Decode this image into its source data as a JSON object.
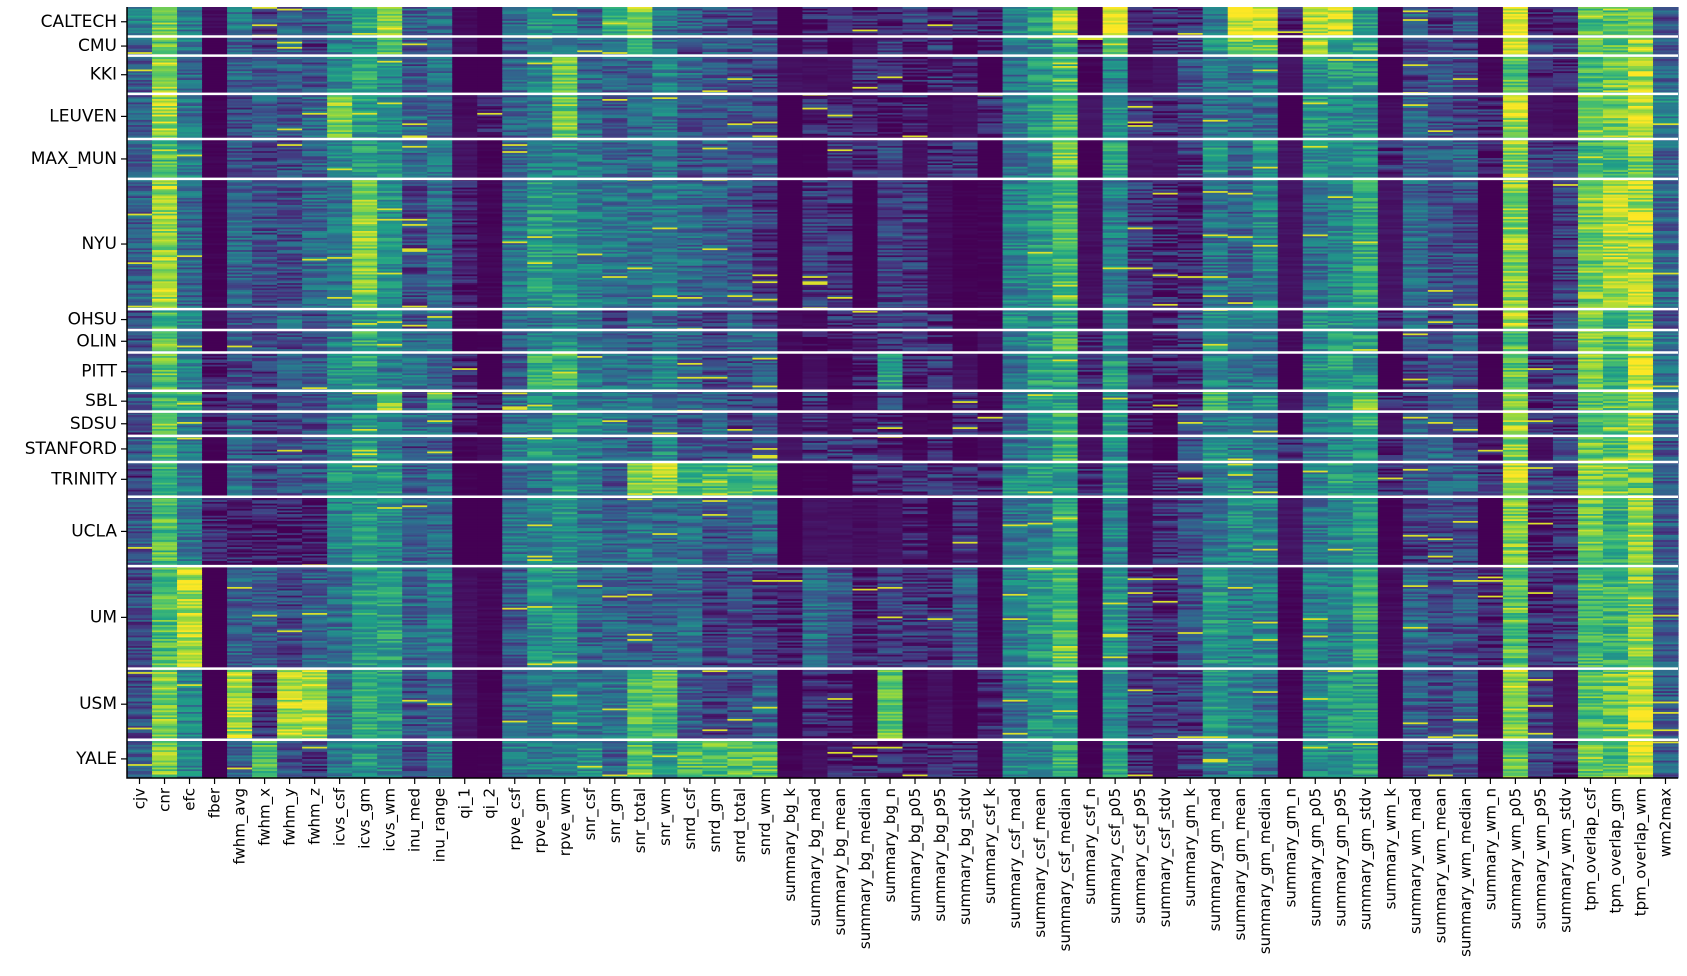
{
  "chart_data": {
    "type": "heatmap",
    "title": "",
    "xlabel": "",
    "ylabel": "",
    "grid": false,
    "legend": "none",
    "colormap": "viridis",
    "colors": {
      "viridis_stops": [
        "#440154",
        "#46327e",
        "#365c8d",
        "#277f8e",
        "#1fa187",
        "#4ac16d",
        "#a0da39",
        "#fde725"
      ],
      "separator": "#ffffff",
      "axis": "#000000"
    },
    "columns": [
      "cjv",
      "cnr",
      "efc",
      "fber",
      "fwhm_avg",
      "fwhm_x",
      "fwhm_y",
      "fwhm_z",
      "icvs_csf",
      "icvs_gm",
      "icvs_wm",
      "inu_med",
      "inu_range",
      "qi_1",
      "qi_2",
      "rpve_csf",
      "rpve_gm",
      "rpve_wm",
      "snr_csf",
      "snr_gm",
      "snr_total",
      "snr_wm",
      "snrd_csf",
      "snrd_gm",
      "snrd_total",
      "snrd_wm",
      "summary_bg_k",
      "summary_bg_mad",
      "summary_bg_mean",
      "summary_bg_median",
      "summary_bg_n",
      "summary_bg_p05",
      "summary_bg_p95",
      "summary_bg_stdv",
      "summary_csf_k",
      "summary_csf_mad",
      "summary_csf_mean",
      "summary_csf_median",
      "summary_csf_n",
      "summary_csf_p05",
      "summary_csf_p95",
      "summary_csf_stdv",
      "summary_gm_k",
      "summary_gm_mad",
      "summary_gm_mean",
      "summary_gm_median",
      "summary_gm_n",
      "summary_gm_p05",
      "summary_gm_p95",
      "summary_gm_stdv",
      "summary_wm_k",
      "summary_wm_mad",
      "summary_wm_mean",
      "summary_wm_median",
      "summary_wm_n",
      "summary_wm_p05",
      "summary_wm_p95",
      "summary_wm_stdv",
      "tpm_overlap_csf",
      "tpm_overlap_gm",
      "tpm_overlap_wm",
      "wm2max"
    ],
    "groups": [
      {
        "name": "CALTECH",
        "rows": 34
      },
      {
        "name": "CMU",
        "rows": 22
      },
      {
        "name": "KKI",
        "rows": 44
      },
      {
        "name": "LEUVEN",
        "rows": 52
      },
      {
        "name": "MAX_MUN",
        "rows": 46
      },
      {
        "name": "NYU",
        "rows": 150
      },
      {
        "name": "OHSU",
        "rows": 24
      },
      {
        "name": "OLIN",
        "rows": 26
      },
      {
        "name": "PITT",
        "rows": 44
      },
      {
        "name": "SBL",
        "rows": 24
      },
      {
        "name": "SDSU",
        "rows": 28
      },
      {
        "name": "STANFORD",
        "rows": 30
      },
      {
        "name": "TRINITY",
        "rows": 40
      },
      {
        "name": "UCLA",
        "rows": 80
      },
      {
        "name": "UM",
        "rows": 118
      },
      {
        "name": "USM",
        "rows": 82
      },
      {
        "name": "YALE",
        "rows": 44
      }
    ],
    "value_range": [
      0,
      1
    ],
    "column_profiles": {
      "_comment": "typical normalized level per column (0=dark purple, 1=yellow); groups override below",
      "base": [
        0.25,
        0.72,
        0.4,
        0.02,
        0.3,
        0.22,
        0.28,
        0.25,
        0.42,
        0.55,
        0.48,
        0.3,
        0.35,
        0.02,
        0.02,
        0.35,
        0.45,
        0.5,
        0.4,
        0.3,
        0.35,
        0.4,
        0.28,
        0.25,
        0.25,
        0.25,
        0.02,
        0.08,
        0.08,
        0.08,
        0.15,
        0.1,
        0.08,
        0.08,
        0.05,
        0.42,
        0.48,
        0.62,
        0.03,
        0.5,
        0.1,
        0.08,
        0.2,
        0.45,
        0.4,
        0.4,
        0.03,
        0.45,
        0.5,
        0.55,
        0.05,
        0.25,
        0.25,
        0.25,
        0.05,
        0.78,
        0.12,
        0.12,
        0.72,
        0.7,
        0.85,
        0.32
      ]
    },
    "group_overrides": {
      "CALTECH": {
        "cjv": 0.45,
        "icvs_wm": 0.85,
        "snr_total": 0.82,
        "snr_csf": 0.3,
        "summary_csf_p05": 0.98,
        "summary_gm_mean": 0.95,
        "summary_gm_median": 0.95,
        "summary_gm_p05": 0.92,
        "summary_gm_p95": 0.92,
        "summary_wm_p05": 0.97,
        "summary_csf_median": 0.85,
        "qi_1": 0.02,
        "fwhm_avg": 0.4,
        "snr_gm": 0.65
      },
      "CMU": {
        "summary_csf_p05": 0.8,
        "summary_gm_mean": 0.78,
        "summary_gm_median": 0.78,
        "summary_gm_p05": 0.85,
        "summary_wm_p05": 0.9,
        "snr_total": 0.7,
        "icvs_wm": 0.7
      },
      "KKI": {
        "cnr": 0.85,
        "rpve_wm": 0.75,
        "tpm_overlap_wm": 0.88
      },
      "LEUVEN": {
        "cnr": 0.85,
        "icvs_csf": 0.78,
        "rpve_wm": 0.78,
        "wm2max": 0.45,
        "tpm_overlap_wm": 0.92
      },
      "MAX_MUN": {
        "snr_gm": 0.35,
        "summary_gm_median": 0.55,
        "summary_csf_median": 0.8
      },
      "NYU": {
        "cnr": 0.85,
        "icvs_gm": 0.8,
        "tpm_overlap_gm": 0.88,
        "tpm_overlap_wm": 0.88,
        "rpve_gm": 0.55
      },
      "PITT": {
        "summary_bg_n": 0.55,
        "rpve_gm": 0.65,
        "rpve_wm": 0.65
      },
      "SBL": {
        "efc": 0.65,
        "icvs_wm": 0.8,
        "inu_range": 0.6,
        "summary_gm_mad": 0.7,
        "summary_gm_stdv": 0.75
      },
      "TRINITY": {
        "snr_total": 0.8,
        "snr_wm": 0.85,
        "snrd_csf": 0.7,
        "snrd_gm": 0.7,
        "snrd_total": 0.7,
        "snrd_wm": 0.7,
        "summary_wm_p05": 0.9
      },
      "UCLA": {
        "summary_bg_n": 0.05,
        "fwhm_avg": 0.1,
        "fwhm_x": 0.08,
        "fwhm_y": 0.08,
        "fwhm_z": 0.08
      },
      "UM": {
        "efc": 0.88,
        "summary_bg_mad": 0.35,
        "summary_bg_mean": 0.25,
        "summary_bg_stdv": 0.3,
        "summary_csf_median": 0.7
      },
      "USM": {
        "cnr": 0.8,
        "fwhm_avg": 0.85,
        "fwhm_y": 0.88,
        "fwhm_z": 0.88,
        "summary_bg_n": 0.75,
        "snr_total": 0.7,
        "snr_wm": 0.72,
        "summary_wm_p05": 0.85,
        "tpm_overlap_wm": 0.9
      },
      "YALE": {
        "cnr": 0.8,
        "fwhm_x": 0.7,
        "snrd_csf": 0.7,
        "snrd_gm": 0.72,
        "snrd_total": 0.72,
        "snrd_wm": 0.72,
        "snr_total": 0.7
      }
    }
  }
}
